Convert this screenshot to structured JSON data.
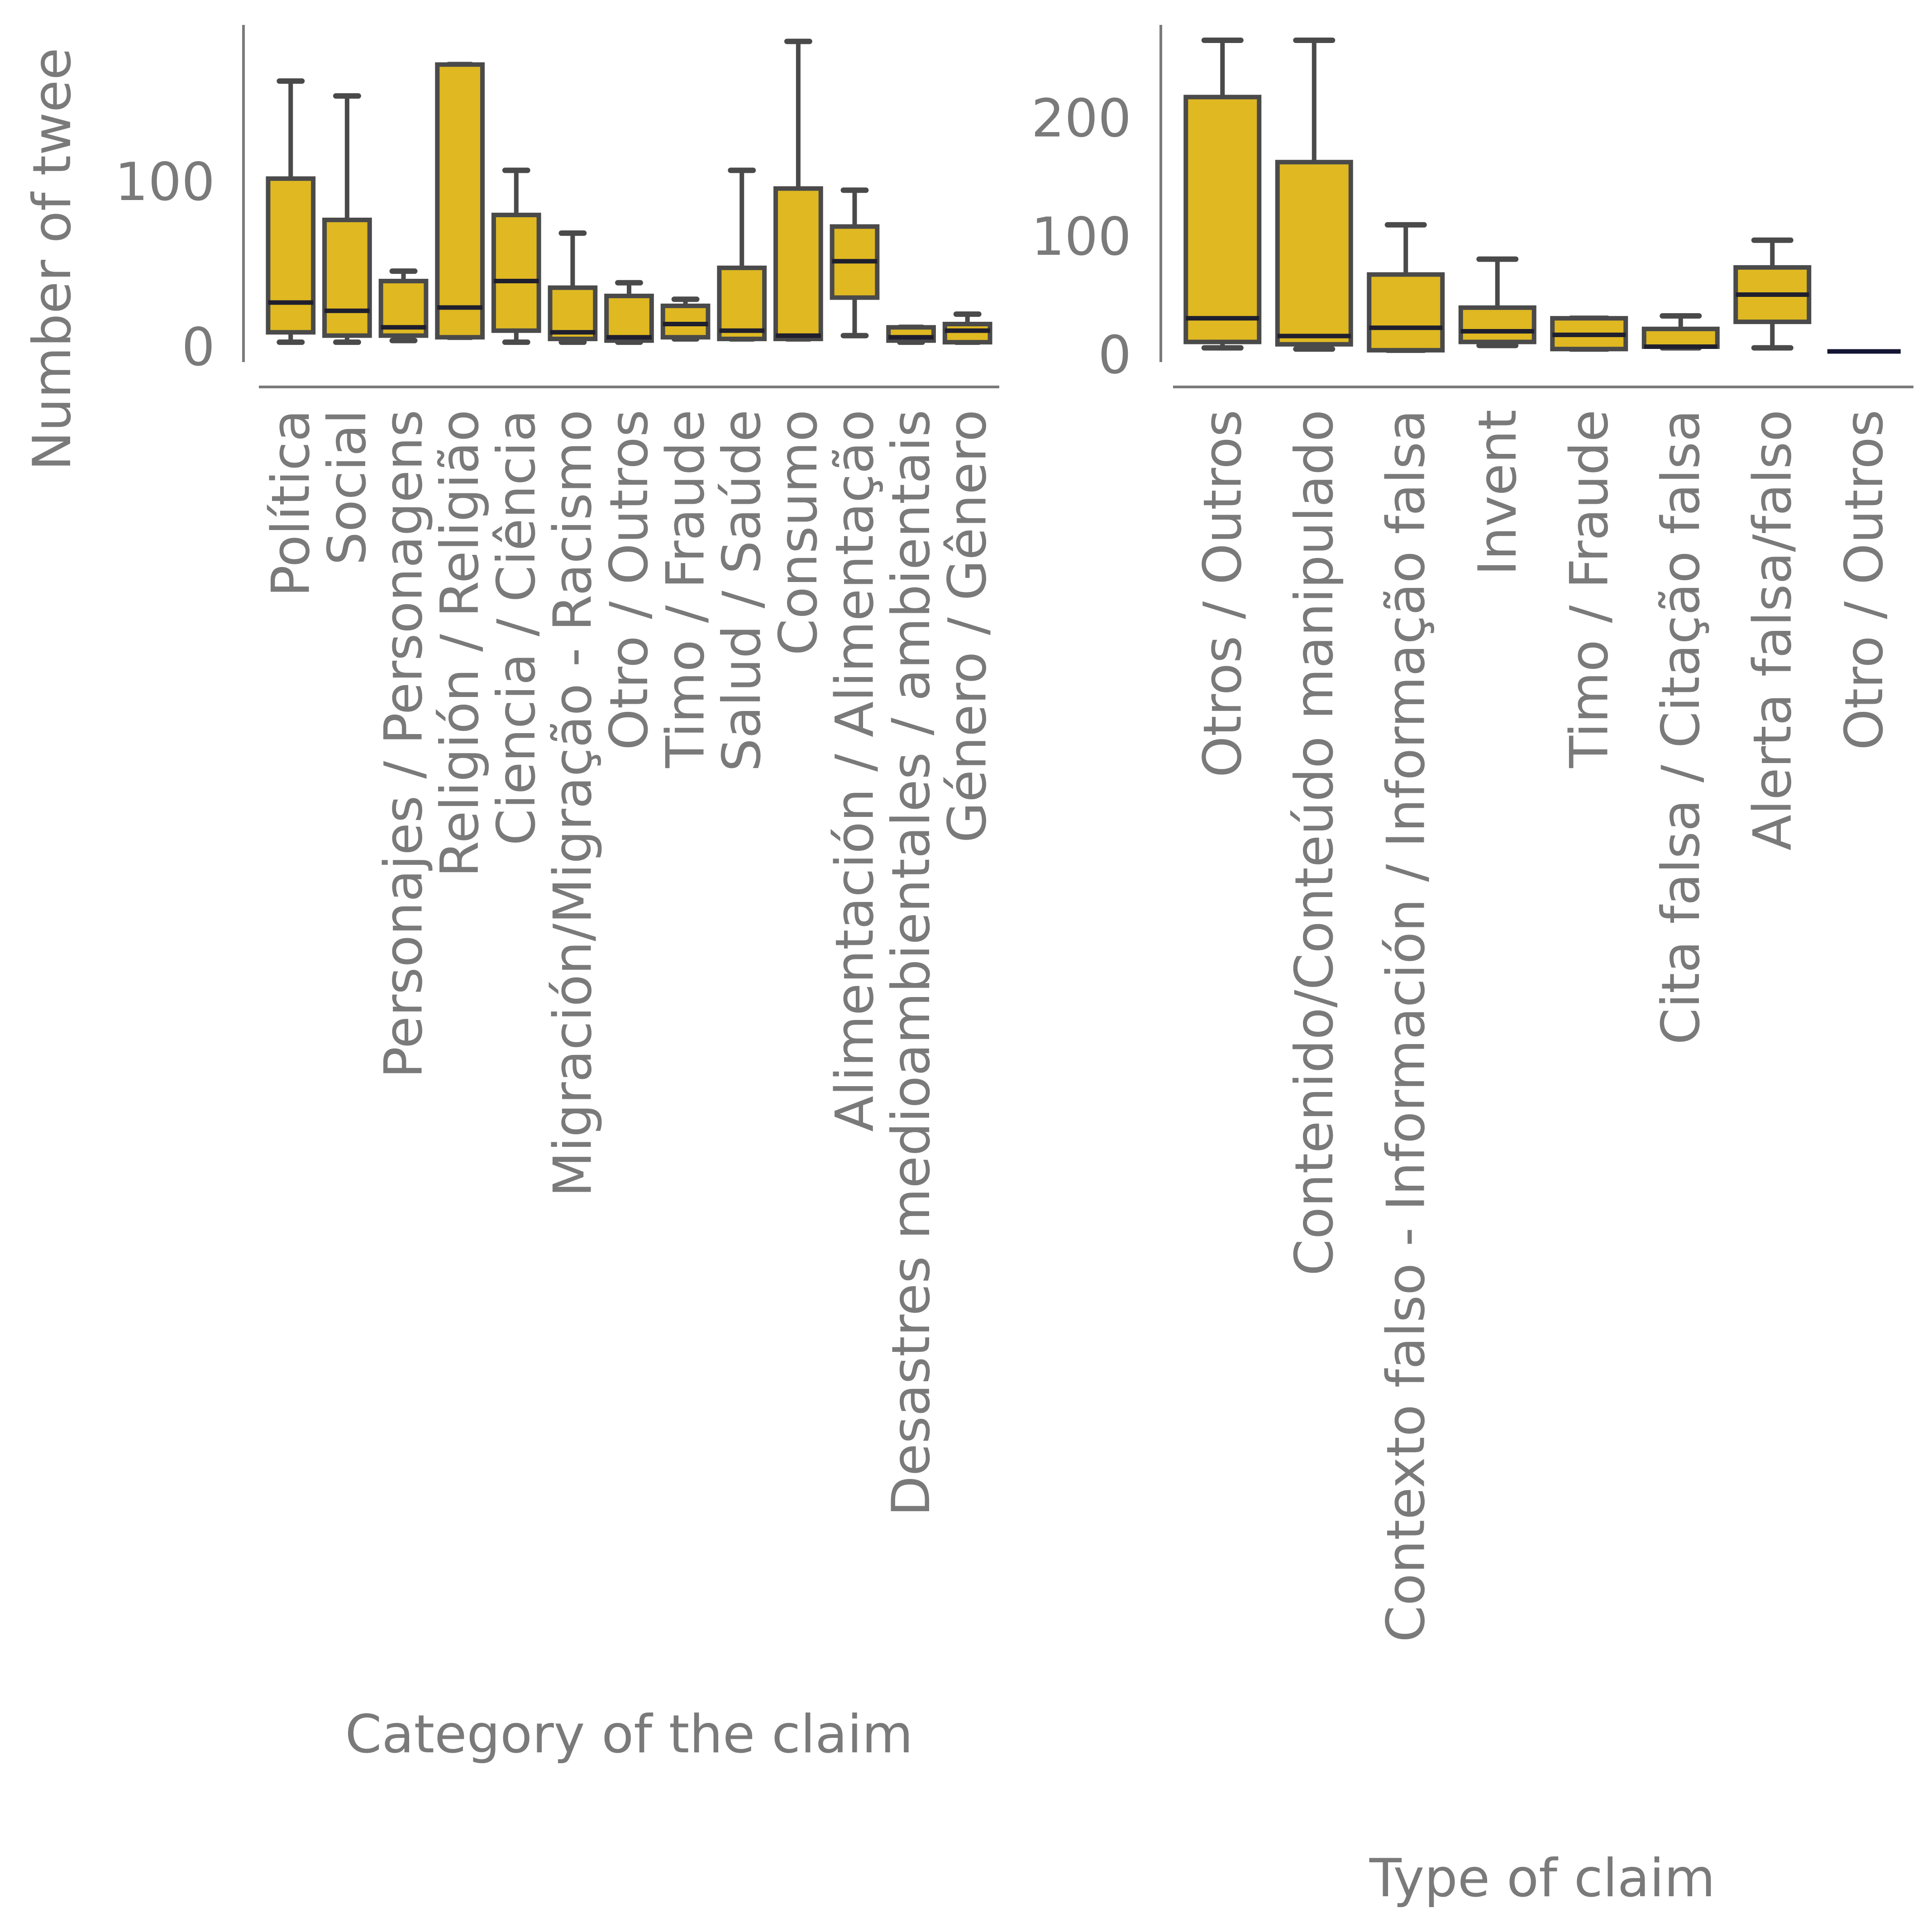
{
  "colors": {
    "box_fill": "#dfb822",
    "box_edge": "#4a4a4a",
    "median": "#1f1f2e",
    "axis": "#7a7a7a",
    "text": "#7a7a7a",
    "flat_line": "#141433"
  },
  "chart_data": [
    {
      "type": "box",
      "xlabel": "Category of the claim",
      "ylabel": "Number of twee",
      "ylim": [
        -9,
        195
      ],
      "yticks": [
        0,
        100
      ],
      "grid": false,
      "categories": [
        "Política",
        "Social",
        "Personajes / Personagens",
        "Religión / Religião",
        "Ciencia / Ciência",
        "Migración/Migração - Racismo",
        "Otro / Outros",
        "Timo / Fraude",
        "Salud / Saúde",
        "Consumo",
        "Alimentación / Alimentação",
        "Desastres medioambientales / ambientais",
        "Género / Gênero"
      ],
      "boxes": [
        {
          "whislo": 3,
          "q1": 9,
          "med": 27,
          "q3": 102,
          "whishi": 161
        },
        {
          "whislo": 3,
          "q1": 7,
          "med": 22,
          "q3": 77,
          "whishi": 152
        },
        {
          "whislo": 4,
          "q1": 7,
          "med": 12,
          "q3": 40,
          "whishi": 46
        },
        {
          "whislo": 6,
          "q1": 6,
          "med": 24,
          "q3": 171,
          "whishi": 171
        },
        {
          "whislo": 3,
          "q1": 10,
          "med": 40,
          "q3": 80,
          "whishi": 107
        },
        {
          "whislo": 3,
          "q1": 5,
          "med": 9,
          "q3": 36,
          "whishi": 69
        },
        {
          "whislo": 3,
          "q1": 4,
          "med": 6,
          "q3": 31,
          "whishi": 39
        },
        {
          "whislo": 5,
          "q1": 6,
          "med": 14,
          "q3": 25,
          "whishi": 29
        },
        {
          "whislo": 5,
          "q1": 5,
          "med": 10,
          "q3": 48,
          "whishi": 107
        },
        {
          "whislo": 5,
          "q1": 5,
          "med": 7,
          "q3": 96,
          "whishi": 185
        },
        {
          "whislo": 7,
          "q1": 30,
          "med": 52,
          "q3": 73,
          "whishi": 95
        },
        {
          "whislo": 3,
          "q1": 4,
          "med": 6,
          "q3": 12,
          "whishi": 12
        },
        {
          "whislo": 3,
          "q1": 3,
          "med": 10,
          "q3": 14,
          "whishi": 20
        }
      ]
    },
    {
      "type": "box",
      "xlabel": "Type of claim",
      "ylabel": "",
      "ylim": [
        -6,
        279
      ],
      "yticks": [
        0,
        100,
        200
      ],
      "grid": false,
      "categories": [
        "Otros / Outros",
        "Contenido/Conteúdo manipulado",
        "Contexto falso - Información / Informação falsa",
        "Invent",
        "Timo / Fraude",
        "Cita falsa / Citação falsa",
        "Alerta falsa/falso",
        "Otro / Outros"
      ],
      "boxes": [
        {
          "whislo": 6,
          "q1": 11,
          "med": 31,
          "q3": 218,
          "whishi": 266
        },
        {
          "whislo": 5,
          "q1": 9,
          "med": 16,
          "q3": 163,
          "whishi": 266
        },
        {
          "whislo": 4,
          "q1": 4,
          "med": 23,
          "q3": 68,
          "whishi": 110
        },
        {
          "whislo": 8,
          "q1": 11,
          "med": 20,
          "q3": 40,
          "whishi": 81
        },
        {
          "whislo": 5,
          "q1": 5,
          "med": 17,
          "q3": 31,
          "whishi": 31
        },
        {
          "whislo": 6,
          "q1": 7,
          "med": 7,
          "q3": 22,
          "whishi": 33
        },
        {
          "whislo": 6,
          "q1": 28,
          "med": 51,
          "q3": 74,
          "whishi": 97
        },
        {
          "whislo": 3,
          "q1": 3,
          "med": 3,
          "q3": 3,
          "whishi": 3
        }
      ]
    }
  ]
}
